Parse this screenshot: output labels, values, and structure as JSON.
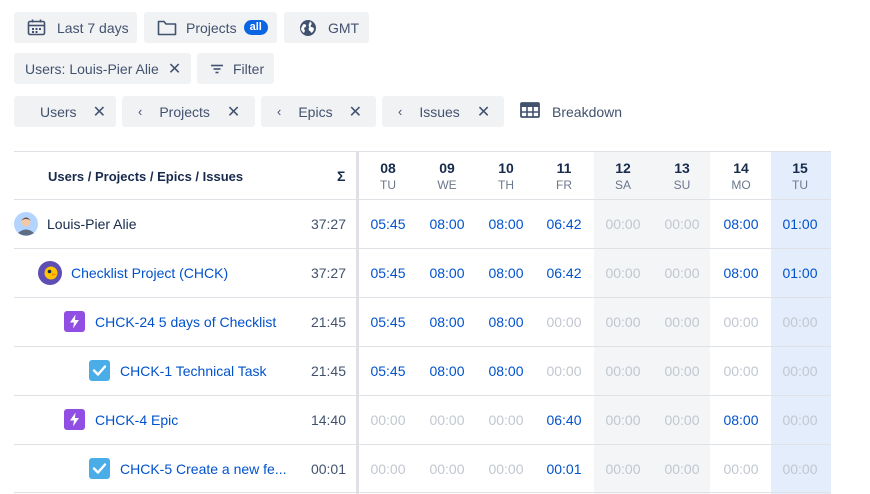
{
  "filters": {
    "date_range": "Last 7 days",
    "projects_label": "Projects",
    "projects_badge": "all",
    "timezone": "GMT",
    "users_filter": "Users: Louis-Pier Alie",
    "filter_button": "Filter"
  },
  "breakdown_chips": [
    {
      "label": "Users"
    },
    {
      "label": "Projects"
    },
    {
      "label": "Epics"
    },
    {
      "label": "Issues"
    }
  ],
  "breakdown_button": "Breakdown",
  "table": {
    "header_name": "Users / Projects / Epics / Issues",
    "header_total": "Σ",
    "days": [
      {
        "num": "08",
        "wd": "TU"
      },
      {
        "num": "09",
        "wd": "WE"
      },
      {
        "num": "10",
        "wd": "TH"
      },
      {
        "num": "11",
        "wd": "FR"
      },
      {
        "num": "12",
        "wd": "SA"
      },
      {
        "num": "13",
        "wd": "SU"
      },
      {
        "num": "14",
        "wd": "MO"
      },
      {
        "num": "15",
        "wd": "TU"
      }
    ],
    "rows": [
      {
        "name": "Louis-Pier Alie",
        "type": "user",
        "total": "37:27",
        "values": [
          "05:45",
          "08:00",
          "08:00",
          "06:42",
          "00:00",
          "00:00",
          "08:00",
          "01:00"
        ]
      },
      {
        "name": "Checklist Project (CHCK)",
        "type": "project",
        "total": "37:27",
        "values": [
          "05:45",
          "08:00",
          "08:00",
          "06:42",
          "00:00",
          "00:00",
          "08:00",
          "01:00"
        ]
      },
      {
        "name": "CHCK-24 5 days of Checklist",
        "type": "epic",
        "total": "21:45",
        "values": [
          "05:45",
          "08:00",
          "08:00",
          "00:00",
          "00:00",
          "00:00",
          "00:00",
          "00:00"
        ]
      },
      {
        "name": "CHCK-1 Technical Task",
        "type": "task",
        "total": "21:45",
        "values": [
          "05:45",
          "08:00",
          "08:00",
          "00:00",
          "00:00",
          "00:00",
          "00:00",
          "00:00"
        ]
      },
      {
        "name": "CHCK-4 Epic",
        "type": "epic",
        "total": "14:40",
        "values": [
          "00:00",
          "00:00",
          "00:00",
          "06:40",
          "00:00",
          "00:00",
          "08:00",
          "00:00"
        ]
      },
      {
        "name": "CHCK-5 Create a new fe...",
        "type": "task",
        "total": "00:01",
        "values": [
          "00:00",
          "00:00",
          "00:00",
          "00:01",
          "00:00",
          "00:00",
          "00:00",
          "00:00"
        ]
      }
    ]
  },
  "colors": {
    "link": "#0052cc",
    "zero": "#c1c7d0",
    "weekend_bg": "#f4f5f7",
    "today_bg": "#e4edfc",
    "epic_icon": "#904ee2",
    "task_icon": "#4bade8"
  }
}
